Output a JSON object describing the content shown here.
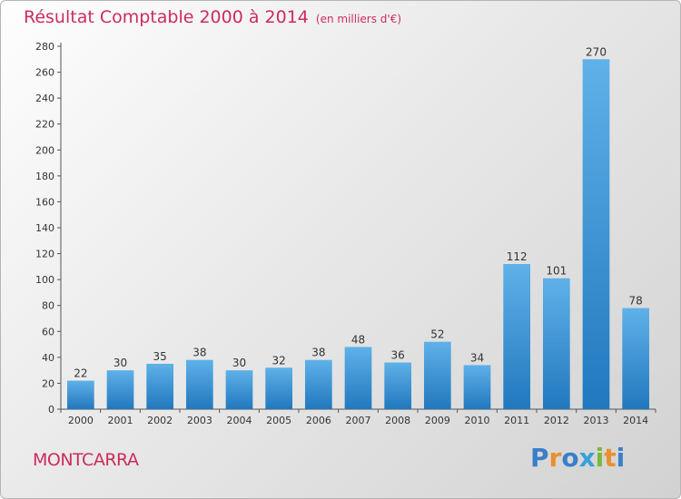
{
  "title": "Résultat Comptable 2000 à 2014",
  "subtitle": "(en milliers d'€)",
  "commune": "MONTCARRA",
  "logo": {
    "text": "Proxiti",
    "letters": [
      "P",
      "r",
      "o",
      "x",
      "i",
      "t",
      "i"
    ],
    "colors": [
      "#3a7fc9",
      "#e8912d",
      "#3a7fc9",
      "#3aa0d8",
      "#7ab83a",
      "#e8912d",
      "#3a7fc9"
    ]
  },
  "colors": {
    "accent": "#cc2c5c",
    "bar_top": "#5fb1e8",
    "bar_bottom": "#2178be"
  },
  "chart_data": {
    "type": "bar",
    "categories": [
      "2000",
      "2001",
      "2002",
      "2003",
      "2004",
      "2005",
      "2006",
      "2007",
      "2008",
      "2009",
      "2010",
      "2011",
      "2012",
      "2013",
      "2014"
    ],
    "values": [
      22,
      30,
      35,
      38,
      30,
      32,
      38,
      48,
      36,
      52,
      34,
      112,
      101,
      270,
      78
    ],
    "title": "Résultat Comptable 2000 à 2014",
    "xlabel": "",
    "ylabel": "",
    "ylim": [
      0,
      280
    ],
    "yticks": [
      0,
      20,
      40,
      60,
      80,
      100,
      120,
      140,
      160,
      180,
      200,
      220,
      240,
      260,
      280
    ],
    "grid": false
  }
}
